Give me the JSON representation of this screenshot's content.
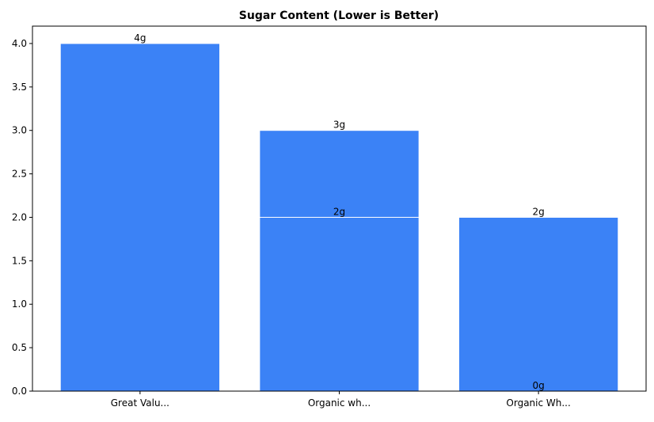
{
  "chart_data": {
    "type": "bar",
    "title": "Sugar Content (Lower is Better)",
    "xlabel": "",
    "ylabel": "",
    "categories": [
      "Great Valu...",
      "Organic wh...",
      "Organic Wh..."
    ],
    "bars": [
      {
        "category": "Great Valu...",
        "value": 4,
        "label": "4g"
      },
      {
        "category": "Organic wh...",
        "value": 3,
        "label": "3g"
      },
      {
        "category": "Organic wh...",
        "value": 2,
        "label": "2g"
      },
      {
        "category": "Organic Wh...",
        "value": 2,
        "label": "2g"
      },
      {
        "category": "Organic Wh...",
        "value": 0,
        "label": "0g"
      }
    ],
    "ylim": [
      0,
      4.2
    ],
    "yticks": [
      "0.0",
      "0.5",
      "1.0",
      "1.5",
      "2.0",
      "2.5",
      "3.0",
      "3.5",
      "4.0"
    ],
    "grid": false,
    "bar_color": "#3b82f6",
    "edge_color": "#ffffff"
  }
}
